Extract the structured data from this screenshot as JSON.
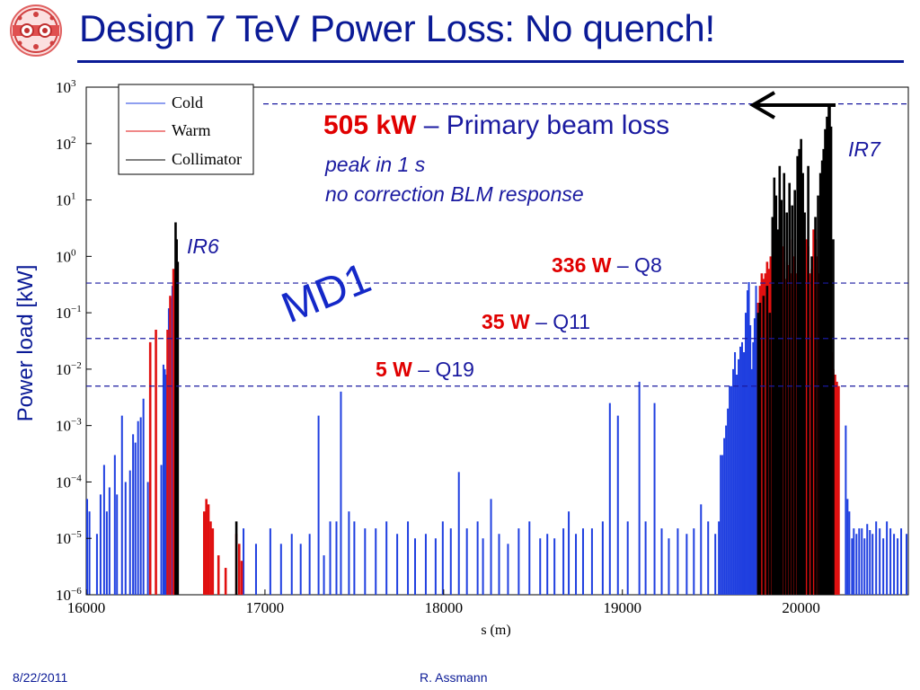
{
  "slide": {
    "title": "Design 7 TeV Power Loss: No quench!",
    "footer_date": "8/22/2011",
    "footer_author": "R. Assmann",
    "colors": {
      "title": "#0a1a96",
      "accent_red": "#e00000",
      "annotation_blue": "#1a1aa0",
      "md1_blue": "#1428c8"
    }
  },
  "chart_data": {
    "type": "bar",
    "xlabel": "s (m)",
    "ylabel": "Power load [kW]",
    "xlim": [
      16000,
      20600
    ],
    "ylim": [
      1e-06,
      1000
    ],
    "yscale": "log",
    "xticks": [
      16000,
      17000,
      18000,
      19000,
      20000
    ],
    "xtick_labels": [
      "16000",
      "17000",
      "18000",
      "19000",
      "20000"
    ],
    "yticks": [
      {
        "base": "10",
        "exp": "3"
      },
      {
        "base": "10",
        "exp": "2"
      },
      {
        "base": "10",
        "exp": "1"
      },
      {
        "base": "10",
        "exp": "0"
      },
      {
        "base": "10",
        "exp": "−1"
      },
      {
        "base": "10",
        "exp": "−2"
      },
      {
        "base": "10",
        "exp": "−3"
      },
      {
        "base": "10",
        "exp": "−4"
      },
      {
        "base": "10",
        "exp": "−5"
      },
      {
        "base": "10",
        "exp": "−6"
      }
    ],
    "grid": false,
    "legend_position": "top-left",
    "series": [
      {
        "name": "Cold",
        "color": "#1f3fe0",
        "points": [
          [
            16005,
            5e-05
          ],
          [
            16018,
            3e-05
          ],
          [
            16060,
            1.2e-05
          ],
          [
            16080,
            6e-05
          ],
          [
            16100,
            0.0002
          ],
          [
            16115,
            3e-05
          ],
          [
            16130,
            8e-05
          ],
          [
            16160,
            0.0003
          ],
          [
            16172,
            6e-05
          ],
          [
            16200,
            0.0015
          ],
          [
            16220,
            0.0001
          ],
          [
            16245,
            0.00016
          ],
          [
            16262,
            0.0007
          ],
          [
            16275,
            0.0005
          ],
          [
            16290,
            0.0012
          ],
          [
            16305,
            0.0014
          ],
          [
            16320,
            0.003
          ],
          [
            16345,
            0.0001
          ],
          [
            16420,
            0.0002
          ],
          [
            16432,
            0.012
          ],
          [
            16440,
            0.01
          ],
          [
            16450,
            0.008
          ],
          [
            16462,
            0.12
          ],
          [
            16472,
            0.18
          ],
          [
            16482,
            0.3
          ],
          [
            16880,
            1.5e-05
          ],
          [
            16950,
            8e-06
          ],
          [
            17030,
            1.5e-05
          ],
          [
            17090,
            8e-06
          ],
          [
            17150,
            1.2e-05
          ],
          [
            17200,
            8e-06
          ],
          [
            17250,
            1.2e-05
          ],
          [
            17300,
            0.0015
          ],
          [
            17330,
            5e-06
          ],
          [
            17365,
            2e-05
          ],
          [
            17400,
            2e-05
          ],
          [
            17425,
            0.004
          ],
          [
            17470,
            3e-05
          ],
          [
            17500,
            2e-05
          ],
          [
            17560,
            1.5e-05
          ],
          [
            17620,
            1.5e-05
          ],
          [
            17680,
            2e-05
          ],
          [
            17740,
            1.2e-05
          ],
          [
            17800,
            2e-05
          ],
          [
            17840,
            1e-05
          ],
          [
            17900,
            1.2e-05
          ],
          [
            17955,
            1e-05
          ],
          [
            17995,
            2e-05
          ],
          [
            18040,
            1.5e-05
          ],
          [
            18085,
            0.00015
          ],
          [
            18130,
            1.5e-05
          ],
          [
            18190,
            2e-05
          ],
          [
            18220,
            1e-05
          ],
          [
            18265,
            5e-05
          ],
          [
            18310,
            1.2e-05
          ],
          [
            18360,
            8e-06
          ],
          [
            18420,
            1.5e-05
          ],
          [
            18480,
            2e-05
          ],
          [
            18540,
            1e-05
          ],
          [
            18580,
            1.2e-05
          ],
          [
            18620,
            1e-05
          ],
          [
            18670,
            1.5e-05
          ],
          [
            18700,
            3e-05
          ],
          [
            18740,
            1.2e-05
          ],
          [
            18780,
            1.5e-05
          ],
          [
            18830,
            1.5e-05
          ],
          [
            18890,
            2e-05
          ],
          [
            18930,
            0.0025
          ],
          [
            18975,
            0.0015
          ],
          [
            19030,
            2e-05
          ],
          [
            19095,
            0.006
          ],
          [
            19130,
            2e-05
          ],
          [
            19180,
            0.0025
          ],
          [
            19220,
            1.5e-05
          ],
          [
            19260,
            1e-05
          ],
          [
            19310,
            1.5e-05
          ],
          [
            19360,
            1.2e-05
          ],
          [
            19400,
            1.5e-05
          ],
          [
            19440,
            4e-05
          ],
          [
            19480,
            2e-05
          ],
          [
            19520,
            1.2e-05
          ],
          [
            19540,
            2e-05
          ],
          [
            19550,
            0.0003
          ],
          [
            19560,
            0.0003
          ],
          [
            19570,
            0.0006
          ],
          [
            19580,
            0.001
          ],
          [
            19590,
            0.002
          ],
          [
            19600,
            0.005
          ],
          [
            19610,
            0.005
          ],
          [
            19620,
            0.01
          ],
          [
            19630,
            0.02
          ],
          [
            19640,
            0.008
          ],
          [
            19650,
            0.015
          ],
          [
            19660,
            0.025
          ],
          [
            19670,
            0.03
          ],
          [
            19680,
            0.02
          ],
          [
            19690,
            0.1
          ],
          [
            19700,
            0.25
          ],
          [
            19708,
            0.35
          ],
          [
            19716,
            0.06
          ],
          [
            19724,
            0.01
          ],
          [
            19732,
            0.03
          ],
          [
            19740,
            0.08
          ],
          [
            19748,
            0.3
          ],
          [
            19756,
            0.05
          ],
          [
            20250,
            0.001
          ],
          [
            20260,
            5e-05
          ],
          [
            20270,
            3e-05
          ],
          [
            20285,
            1e-05
          ],
          [
            20295,
            1.5e-05
          ],
          [
            20310,
            1.2e-05
          ],
          [
            20325,
            1.5e-05
          ],
          [
            20340,
            1.5e-05
          ],
          [
            20355,
            1e-05
          ],
          [
            20370,
            1.8e-05
          ],
          [
            20385,
            1.4e-05
          ],
          [
            20400,
            1.2e-05
          ],
          [
            20420,
            2e-05
          ],
          [
            20440,
            1.5e-05
          ],
          [
            20460,
            1e-05
          ],
          [
            20480,
            2e-05
          ],
          [
            20500,
            1.5e-05
          ],
          [
            20520,
            1.2e-05
          ],
          [
            20540,
            1e-05
          ],
          [
            20560,
            1.5e-05
          ],
          [
            20590,
            1.2e-05
          ]
        ]
      },
      {
        "name": "Warm",
        "color": "#e01010",
        "points": [
          [
            16358,
            0.03
          ],
          [
            16390,
            0.05
          ],
          [
            16455,
            0.05
          ],
          [
            16470,
            0.2
          ],
          [
            16488,
            0.6
          ],
          [
            16498,
            0.4
          ],
          [
            16660,
            3e-05
          ],
          [
            16672,
            5e-05
          ],
          [
            16684,
            4e-05
          ],
          [
            16696,
            2e-05
          ],
          [
            16708,
            1.5e-05
          ],
          [
            16740,
            5e-06
          ],
          [
            16780,
            3e-06
          ],
          [
            16840,
            1.2e-05
          ],
          [
            16856,
            8e-06
          ],
          [
            16870,
            4e-06
          ],
          [
            19760,
            0.15
          ],
          [
            19770,
            0.3
          ],
          [
            19780,
            0.5
          ],
          [
            19790,
            0.4
          ],
          [
            19800,
            0.5
          ],
          [
            19810,
            0.8
          ],
          [
            19820,
            0.6
          ],
          [
            19830,
            1
          ],
          [
            19840,
            2
          ],
          [
            19850,
            0.7
          ],
          [
            19860,
            0.4
          ],
          [
            19870,
            0.3
          ],
          [
            19880,
            1.2
          ],
          [
            19890,
            0.5
          ],
          [
            19900,
            1.5
          ],
          [
            19910,
            0.4
          ],
          [
            19920,
            0.8
          ],
          [
            19930,
            0.7
          ],
          [
            19940,
            0.5
          ],
          [
            19950,
            2
          ],
          [
            19960,
            1
          ],
          [
            19970,
            0.5
          ],
          [
            19980,
            0.3
          ],
          [
            19990,
            0.6
          ],
          [
            20000,
            0.4
          ],
          [
            20010,
            1
          ],
          [
            20020,
            0.7
          ],
          [
            20030,
            2
          ],
          [
            20040,
            1.5
          ],
          [
            20050,
            0.5
          ],
          [
            20060,
            0.6
          ],
          [
            20070,
            3
          ],
          [
            20080,
            2
          ],
          [
            20090,
            1
          ],
          [
            20100,
            0.5
          ],
          [
            20110,
            2
          ],
          [
            20120,
            4
          ],
          [
            20130,
            1
          ],
          [
            20140,
            2
          ],
          [
            20150,
            0.5
          ],
          [
            20160,
            0.1
          ],
          [
            20170,
            0.02
          ],
          [
            20180,
            0.01
          ],
          [
            20190,
            0.008
          ],
          [
            20200,
            0.006
          ],
          [
            20210,
            0.005
          ]
        ]
      },
      {
        "name": "Collimator",
        "color": "#000000",
        "points": [
          [
            16500,
            4
          ],
          [
            16506,
            2
          ],
          [
            16512,
            0.8
          ],
          [
            16840,
            2e-05
          ],
          [
            19760,
            0.1
          ],
          [
            19770,
            0.15
          ],
          [
            19790,
            0.2
          ],
          [
            19810,
            0.3
          ],
          [
            19825,
            0.1
          ],
          [
            19840,
            5
          ],
          [
            19850,
            25
          ],
          [
            19860,
            12
          ],
          [
            19870,
            3
          ],
          [
            19880,
            40
          ],
          [
            19890,
            10
          ],
          [
            19905,
            30
          ],
          [
            19920,
            6
          ],
          [
            19935,
            20
          ],
          [
            19950,
            8
          ],
          [
            19965,
            15
          ],
          [
            19980,
            60
          ],
          [
            19990,
            80
          ],
          [
            20000,
            120
          ],
          [
            20010,
            30
          ],
          [
            20020,
            6
          ],
          [
            20040,
            40
          ],
          [
            20060,
            1
          ],
          [
            20080,
            5
          ],
          [
            20095,
            12
          ],
          [
            20108,
            30
          ],
          [
            20118,
            50
          ],
          [
            20126,
            80
          ],
          [
            20135,
            180
          ],
          [
            20145,
            300
          ],
          [
            20155,
            505
          ],
          [
            20160,
            505
          ],
          [
            20168,
            200
          ],
          [
            20180,
            2
          ]
        ]
      }
    ],
    "reference_lines": [
      {
        "label_value": "505 kW",
        "label_text": " – Primary beam loss",
        "value_kW": 505
      },
      {
        "label_value": "336 W",
        "label_text": " – Q8",
        "value_kW": 0.336
      },
      {
        "label_value": "35 W",
        "label_text": " – Q11",
        "value_kW": 0.035
      },
      {
        "label_value": "5 W",
        "label_text": " – Q19",
        "value_kW": 0.005
      }
    ],
    "annotations": {
      "peak_line1": "peak in 1 s",
      "peak_line2": "no correction BLM response",
      "ir6": "IR6",
      "ir7": "IR7",
      "md1": "MD1"
    }
  }
}
